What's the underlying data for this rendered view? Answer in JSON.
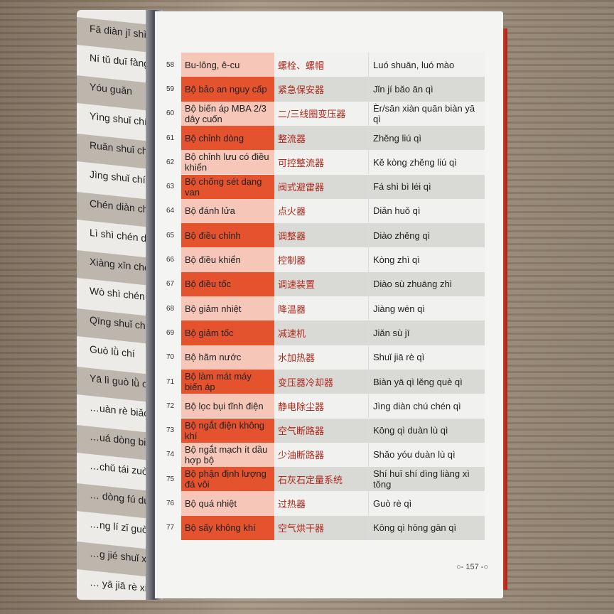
{
  "left_page": {
    "rows": [
      "Fā diàn jī shì gù bǎo hú",
      "Ní tǔ duī fàng chǎng",
      "Yóu guǎn",
      "Yìng shuǐ chí",
      "Ruǎn shuǐ chí",
      "Jìng shuǐ chí",
      "Chén diàn chí",
      "Lì shì chén diàn chí",
      "Xiàng xīn chén diàn chí",
      "Wò shì chén diàn chí",
      "Qīng shuǐ chén diàn chí",
      "Guò lǜ chí",
      "Yā lì guò lǜ chí",
      "…uàn rè biǎo miàn",
      "…uá dòng biǎo miàn",
      "…chǔ tái zuò",
      "… dòng fú dù",
      "…ng lí zǐ guò lǜ chí",
      "…g jié shuǐ xiāng",
      "… yā jiā rè xiāng"
    ]
  },
  "table": {
    "rows": [
      {
        "num": "58",
        "vi": "Bu-lông, ê-cu",
        "zh": "螺栓、螺帽",
        "py": "Luó shuān, luó mào"
      },
      {
        "num": "59",
        "vi": "Bộ bảo an nguy cấp",
        "zh": "紧急保安器",
        "py": "Jǐn jí bǎo ān qì"
      },
      {
        "num": "60",
        "vi": "Bộ biến áp MBA 2/3 dây cuốn",
        "zh": "二/三线圈变压器",
        "py": "Èr/sān xiàn quān biàn yā qì"
      },
      {
        "num": "61",
        "vi": "Bộ chỉnh dòng",
        "zh": "整流器",
        "py": "Zhěng liú qì"
      },
      {
        "num": "62",
        "vi": "Bộ chỉnh lưu có điều khiển",
        "zh": "可控整流器",
        "py": "Kě kòng zhěng liú qì"
      },
      {
        "num": "63",
        "vi": "Bộ chống sét dạng van",
        "zh": "阀式避雷器",
        "py": "Fá shì bì léi qì"
      },
      {
        "num": "64",
        "vi": "Bộ đánh lửa",
        "zh": "点火器",
        "py": "Diǎn huǒ qì"
      },
      {
        "num": "65",
        "vi": "Bộ điều chỉnh",
        "zh": "调整器",
        "py": "Diào zhěng qì"
      },
      {
        "num": "66",
        "vi": "Bộ điều khiển",
        "zh": "控制器",
        "py": "Kòng zhì qì"
      },
      {
        "num": "67",
        "vi": "Bộ điều tốc",
        "zh": "调速装置",
        "py": "Diào sù zhuāng zhì"
      },
      {
        "num": "68",
        "vi": "Bộ giảm nhiệt",
        "zh": "降温器",
        "py": "Jiàng wēn qì"
      },
      {
        "num": "69",
        "vi": "Bộ giảm tốc",
        "zh": "减速机",
        "py": "Jiǎn sù jī"
      },
      {
        "num": "70",
        "vi": "Bộ hãm nước",
        "zh": "水加热器",
        "py": "Shuǐ jiā rè qì"
      },
      {
        "num": "71",
        "vi": "Bộ làm mát máy biến áp",
        "zh": "变压器冷却器",
        "py": "Biàn yā qì lěng què qì"
      },
      {
        "num": "72",
        "vi": "Bộ lọc bụi tĩnh điện",
        "zh": "静电除尘器",
        "py": "Jìng diàn chú chén qì"
      },
      {
        "num": "73",
        "vi": "Bộ ngắt điện không khí",
        "zh": "空气断路器",
        "py": "Kōng qì duàn lù qì"
      },
      {
        "num": "74",
        "vi": "Bộ ngắt mạch ít dầu hợp bộ",
        "zh": "少油断路器",
        "py": "Shǎo yóu duàn lù qì"
      },
      {
        "num": "75",
        "vi": "Bộ phận định lượng đá vôi",
        "zh": "石灰石定量系统",
        "py": "Shí huī shí dìng liàng xì tǒng"
      },
      {
        "num": "76",
        "vi": "Bộ quá nhiệt",
        "zh": "过热器",
        "py": "Guò rè qì"
      },
      {
        "num": "77",
        "vi": "Bộ sấy không khí",
        "zh": "空气烘干器",
        "py": "Kōng qì hōng gān qì"
      }
    ]
  },
  "page_number": "157",
  "colors": {
    "accent_red": "#e5522e",
    "pink": "#f6c7b8",
    "chinese_text": "#b0281c"
  }
}
